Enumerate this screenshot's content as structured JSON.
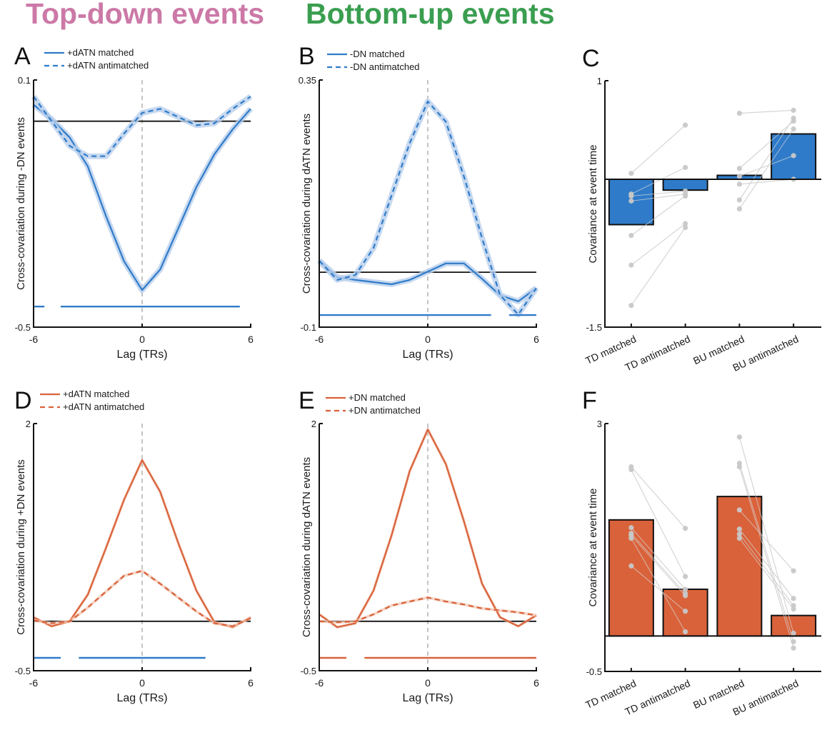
{
  "headers": {
    "top_down": {
      "text": "Top-down events",
      "color": "#CC79A7"
    },
    "bottom_up": {
      "text": "Bottom-up events",
      "color": "#3A9E50"
    }
  },
  "colors": {
    "blue": "#2F7BC9",
    "blue_shade": "#B9D0EC",
    "orange": "#D9623A",
    "orange_shade": "#F2C4B0",
    "dot": "#C8C8C8",
    "dot_line": "#D0D0D0"
  },
  "chart_data": [
    {
      "panel": "A",
      "type": "line",
      "color": "blue",
      "xlabel": "Lag (TRs)",
      "ylabel": "Cross-covariation during -DN events",
      "xlim": [
        -6,
        6
      ],
      "ylim": [
        -0.5,
        0.1
      ],
      "xticks": [
        "-6",
        "0",
        "6"
      ],
      "yticks": [
        "0.1",
        "-0.5"
      ],
      "zero_line": true,
      "vline_at": 0,
      "x": [
        -6,
        -5,
        -4,
        -3,
        -2,
        -1,
        0,
        1,
        2,
        3,
        4,
        5,
        6
      ],
      "series": [
        {
          "name": "+dATN matched",
          "style": "solid",
          "values": [
            0.04,
            0.005,
            -0.04,
            -0.11,
            -0.23,
            -0.34,
            -0.41,
            -0.36,
            -0.26,
            -0.16,
            -0.08,
            -0.02,
            0.03
          ]
        },
        {
          "name": "+dATN antimatched",
          "style": "dashed",
          "values": [
            0.06,
            0.0,
            -0.06,
            -0.085,
            -0.085,
            -0.03,
            0.02,
            0.03,
            0.01,
            -0.01,
            -0.005,
            0.03,
            0.06
          ]
        }
      ],
      "significance": {
        "color": "blue",
        "level": -0.45,
        "segments": [
          [
            -6,
            -5.4
          ],
          [
            -4.5,
            5.4
          ]
        ]
      }
    },
    {
      "panel": "B",
      "type": "line",
      "color": "blue",
      "xlabel": "Lag (TRs)",
      "ylabel": "Cross-covariation during dATN events",
      "xlim": [
        -6,
        6
      ],
      "ylim": [
        -0.1,
        0.35
      ],
      "xticks": [
        "-6",
        "0",
        "6"
      ],
      "yticks": [
        "0.35",
        "-0.1"
      ],
      "zero_line": true,
      "vline_at": 0,
      "x": [
        -6,
        -5,
        -4,
        -3,
        -2,
        -1,
        0,
        1,
        2,
        3,
        4,
        5,
        6
      ],
      "series": [
        {
          "name": "-DN matched",
          "style": "solid",
          "values": [
            0.021,
            -0.009,
            -0.014,
            -0.018,
            -0.022,
            -0.014,
            0.001,
            0.016,
            0.016,
            -0.012,
            -0.042,
            -0.053,
            -0.029
          ]
        },
        {
          "name": "-DN antimatched",
          "style": "dashed",
          "values": [
            0.021,
            -0.014,
            -0.005,
            0.044,
            0.14,
            0.235,
            0.311,
            0.274,
            0.174,
            0.062,
            -0.042,
            -0.077,
            -0.029
          ]
        }
      ],
      "significance": {
        "color": "blue",
        "level": -0.078,
        "segments": [
          [
            -6,
            3.5
          ],
          [
            4.5,
            6
          ]
        ]
      }
    },
    {
      "panel": "C",
      "type": "bar",
      "color": "blue",
      "ylabel": "Covariance at event time",
      "ylim": [
        -1.5,
        1
      ],
      "yticks": [
        "1",
        "-1.5"
      ],
      "categories": [
        "TD matched",
        "TD antimatched",
        "BU matched",
        "BU antimatched"
      ],
      "values": [
        -0.46,
        -0.11,
        0.04,
        0.46
      ],
      "points": [
        [
          0.06,
          -0.15,
          -0.17,
          -0.22,
          -0.57,
          -0.87,
          -1.28
        ],
        [
          0.55,
          0.12,
          -0.12,
          -0.15,
          -0.17,
          -0.45,
          -0.49
        ],
        [
          0.67,
          0.11,
          0.03,
          -0.05,
          -0.21,
          -0.3
        ],
        [
          0.7,
          0.59,
          0.24,
          0.0,
          0.62,
          0.51
        ]
      ]
    },
    {
      "panel": "D",
      "type": "line",
      "color": "orange",
      "xlabel": "Lag (TRs)",
      "ylabel": "Cross-covariation during +DN events",
      "xlim": [
        -6,
        6
      ],
      "ylim": [
        -0.5,
        2
      ],
      "xticks": [
        "-6",
        "0",
        "6"
      ],
      "yticks": [
        "2",
        "-0.5"
      ],
      "zero_line": true,
      "vline_at": 0,
      "x": [
        -6,
        -5,
        -4,
        -3,
        -2,
        -1,
        0,
        1,
        2,
        3,
        4,
        5,
        6
      ],
      "series": [
        {
          "name": "+dATN matched",
          "style": "solid",
          "values": [
            0.04,
            -0.05,
            0.0,
            0.27,
            0.74,
            1.23,
            1.63,
            1.31,
            0.79,
            0.31,
            -0.01,
            -0.06,
            0.04
          ]
        },
        {
          "name": "+dATN antimatched",
          "style": "dashed",
          "values": [
            0.01,
            -0.02,
            0.0,
            0.14,
            0.3,
            0.46,
            0.51,
            0.38,
            0.24,
            0.1,
            -0.02,
            -0.05,
            0.03
          ]
        }
      ],
      "significance": {
        "color": "blue",
        "level": -0.37,
        "segments": [
          [
            -6,
            -4.5
          ],
          [
            -3.5,
            3.5
          ]
        ]
      }
    },
    {
      "panel": "E",
      "type": "line",
      "color": "orange",
      "xlabel": "Lag (TRs)",
      "ylabel": "Cross-covariation during dATN events",
      "xlim": [
        -6,
        6
      ],
      "ylim": [
        -0.5,
        2
      ],
      "xticks": [
        "-6",
        "0",
        "6"
      ],
      "yticks": [
        "2",
        "-0.5"
      ],
      "zero_line": true,
      "vline_at": 0,
      "x": [
        -6,
        -5,
        -4,
        -3,
        -2,
        -1,
        0,
        1,
        2,
        3,
        4,
        5,
        6
      ],
      "series": [
        {
          "name": "+DN matched",
          "style": "solid",
          "values": [
            0.07,
            -0.06,
            -0.02,
            0.31,
            0.87,
            1.52,
            1.94,
            1.59,
            1.01,
            0.38,
            0.04,
            -0.05,
            0.06
          ]
        },
        {
          "name": "+DN antimatched",
          "style": "dashed",
          "values": [
            0.0,
            -0.01,
            0.0,
            0.07,
            0.16,
            0.2,
            0.24,
            0.2,
            0.17,
            0.13,
            0.11,
            0.09,
            0.06
          ]
        }
      ],
      "significance": {
        "color": "orange",
        "level": -0.37,
        "segments": [
          [
            -6,
            -4.5
          ],
          [
            -3.5,
            6
          ]
        ]
      }
    },
    {
      "panel": "F",
      "type": "bar",
      "color": "orange",
      "ylabel": "Covariance at event time",
      "ylim": [
        -0.5,
        3
      ],
      "yticks": [
        "3",
        "-0.5"
      ],
      "categories": [
        "TD matched",
        "TD antimatched",
        "BU matched",
        "BU antimatched"
      ],
      "values": [
        1.64,
        0.66,
        1.97,
        0.29
      ],
      "points": [
        [
          2.39,
          2.35,
          1.53,
          1.45,
          1.42,
          1.38,
          0.99
        ],
        [
          1.52,
          0.84,
          0.66,
          0.6,
          0.57,
          0.06,
          0.35
        ],
        [
          2.81,
          2.44,
          2.39,
          1.78,
          1.51,
          1.44,
          1.38
        ],
        [
          0.04,
          -0.08,
          -0.17,
          0.92,
          0.53,
          0.43,
          0.38
        ]
      ]
    }
  ]
}
